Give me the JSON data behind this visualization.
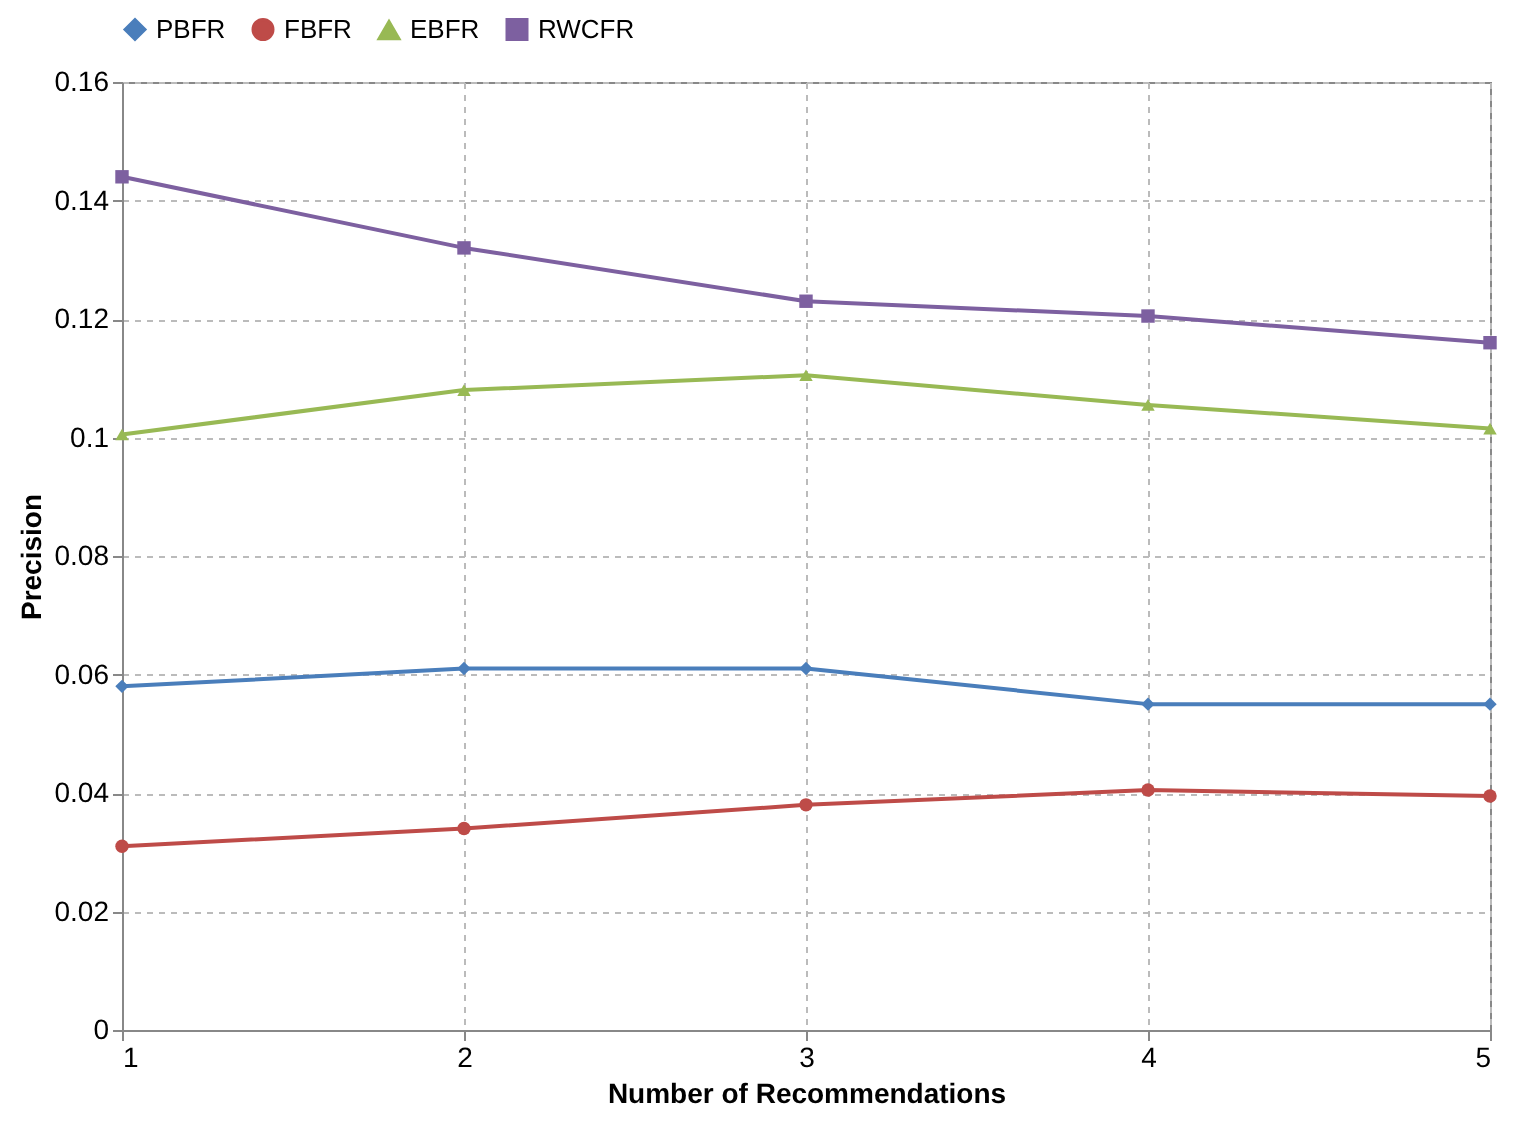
{
  "chart_data": {
    "type": "line",
    "xlabel": "Number of Recommendations",
    "ylabel": "Precision",
    "x": [
      1,
      2,
      3,
      4,
      5
    ],
    "xlim": [
      1,
      5
    ],
    "xticks": [
      1,
      2,
      3,
      4,
      5
    ],
    "ylim": [
      0,
      0.16
    ],
    "yticks": [
      0,
      0.02,
      0.04,
      0.06,
      0.08,
      0.1,
      0.12,
      0.14,
      0.16
    ],
    "grid": true,
    "legend": "top",
    "line_style": "solid",
    "series": [
      {
        "name": "PBFR",
        "color": "#4a7ebb",
        "marker": "diamond",
        "values": [
          0.058,
          0.061,
          0.061,
          0.055,
          0.055
        ]
      },
      {
        "name": "FBFR",
        "color": "#be4b48",
        "marker": "circle",
        "values": [
          0.031,
          0.034,
          0.038,
          0.0405,
          0.0395
        ]
      },
      {
        "name": "EBFR",
        "color": "#98b954",
        "marker": "triangle",
        "values": [
          0.1005,
          0.108,
          0.1105,
          0.1055,
          0.1015
        ]
      },
      {
        "name": "RWCFR",
        "color": "#7d60a0",
        "marker": "square",
        "values": [
          0.144,
          0.132,
          0.123,
          0.1205,
          0.116
        ]
      }
    ]
  }
}
